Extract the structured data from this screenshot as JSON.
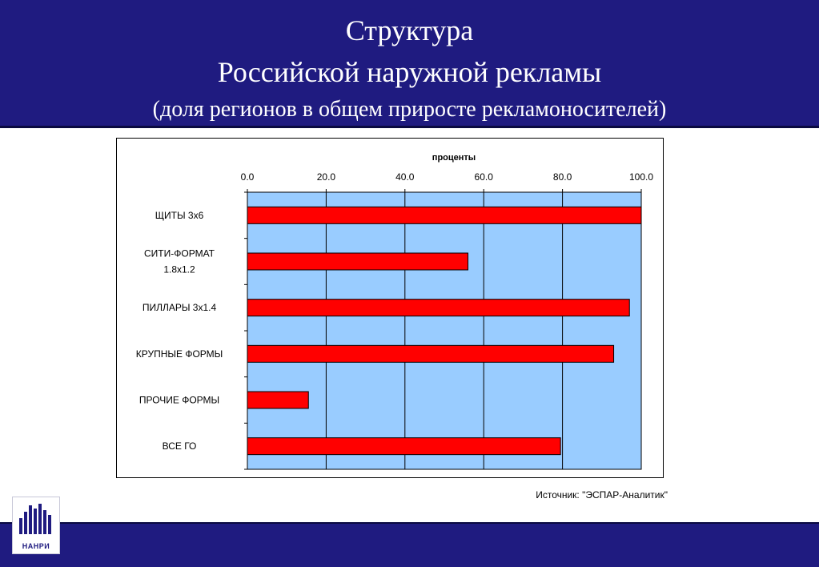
{
  "header": {
    "title_line1": "Структура",
    "title_line2": "Российской наружной рекламы",
    "subtitle": "(доля регионов в  общем приросте рекламоносителей)"
  },
  "colors": {
    "header_bg": "#1f1b80",
    "plot_bg": "#99ccff",
    "bar_fill": "#ff0000"
  },
  "chart_data": {
    "type": "bar",
    "orientation": "horizontal",
    "title": "проценты",
    "categories": [
      [
        "ЩИТЫ 3х6"
      ],
      [
        "СИТИ-ФОРМАТ",
        "1.8х1.2"
      ],
      [
        "ПИЛЛАРЫ 3х1.4"
      ],
      [
        "КРУПНЫЕ  ФОРМЫ"
      ],
      [
        "ПРОЧИЕ  ФОРМЫ"
      ],
      [
        "ВСЕ ГО"
      ]
    ],
    "values": [
      100.0,
      56.0,
      97.0,
      93.0,
      15.5,
      79.5
    ],
    "xlim": [
      0,
      100
    ],
    "x_ticks": [
      "0.0",
      "20.0",
      "40.0",
      "60.0",
      "80.0",
      "100.0"
    ],
    "x_axis_position": "top",
    "grid": true,
    "legend": "none"
  },
  "source": "Источник: \"ЭСПАР-Аналитик\"",
  "logo": {
    "text": "НАНРИ",
    "icon": "bar-chart-logo-icon"
  }
}
